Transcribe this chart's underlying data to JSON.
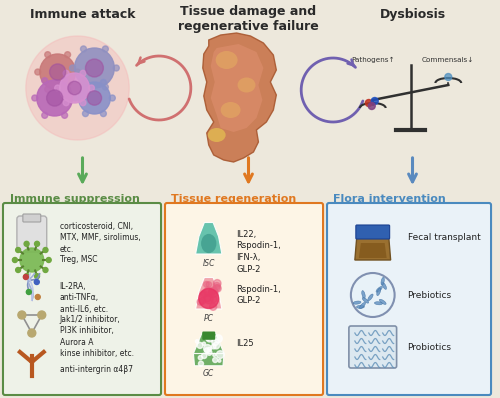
{
  "bg_color": "#ede8dc",
  "title_immune": "Immune attack",
  "title_tissue": "Tissue damage and\nregenerative failure",
  "title_dysbiosis": "Dysbiosis",
  "pathogens_label": "Pathogens↑",
  "commensals_label": "Commensals↓",
  "section1_title": "Immune suppression",
  "section2_title": "Tissue regeneration",
  "section3_title": "Flora intervention",
  "section1_color": "#5a8c45",
  "section2_color": "#e07820",
  "section3_color": "#4a8abf",
  "items_s1": [
    "corticosteroid, CNI,\nMTX, MMF, sirolimus,\netc.",
    "Treg, MSC",
    "IL-2RA,\nanti-TNFα,\nanti-IL6, etc.",
    "Jak1/2 inhibitor,\nPI3K inhibitor,\nAurora A\nkinse inhibitor, etc.",
    "anti-intergrin α4β7"
  ],
  "items_s2_cell": [
    "ISC",
    "PC",
    "GC"
  ],
  "items_s2_text": [
    "IL22,\nRspodin-1,\nIFN-λ,\nGLP-2",
    "Rspodin-1,\nGLP-2",
    "IL25"
  ],
  "items_s3_text": [
    "Fecal transplant",
    "Prebiotics",
    "Probiotics"
  ],
  "arrow1_color": "#5aaa5a",
  "arrow2_color": "#e07820",
  "arrow3_color": "#5a8abf",
  "circ_arrow1_color": "#d07070",
  "circ_arrow2_color": "#7060b0"
}
